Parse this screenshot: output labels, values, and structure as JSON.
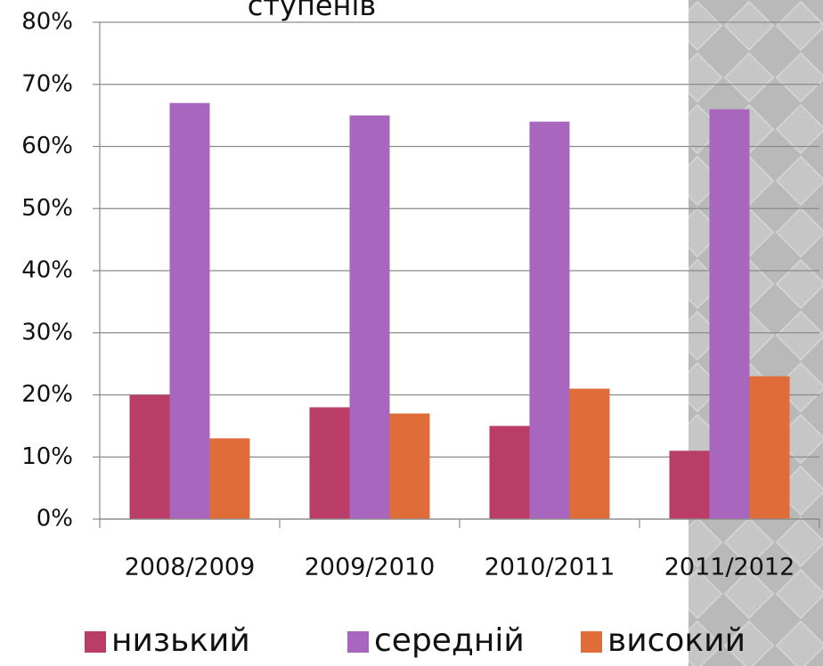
{
  "chart_data": {
    "type": "bar",
    "title": "ступенів",
    "categories": [
      "2008/2009",
      "2009/2010",
      "2010/2011",
      "2011/2012"
    ],
    "series": [
      {
        "name": "низький",
        "color": "#b93d66",
        "values": [
          20,
          18,
          15,
          11
        ]
      },
      {
        "name": "середній",
        "color": "#a866bf",
        "values": [
          67,
          65,
          64,
          66
        ]
      },
      {
        "name": "високий",
        "color": "#e06c3a",
        "values": [
          13,
          17,
          21,
          23
        ]
      }
    ],
    "ylim": [
      0,
      80
    ],
    "yticks": [
      {
        "value": 0,
        "label": "0%"
      },
      {
        "value": 10,
        "label": "10%"
      },
      {
        "value": 20,
        "label": "20%"
      },
      {
        "value": 30,
        "label": "30%"
      },
      {
        "value": 40,
        "label": "40%"
      },
      {
        "value": 50,
        "label": "50%"
      },
      {
        "value": 60,
        "label": "60%"
      },
      {
        "value": 70,
        "label": "70%"
      },
      {
        "value": 80,
        "label": "80%"
      }
    ],
    "grid": true,
    "legend": "bottom"
  }
}
